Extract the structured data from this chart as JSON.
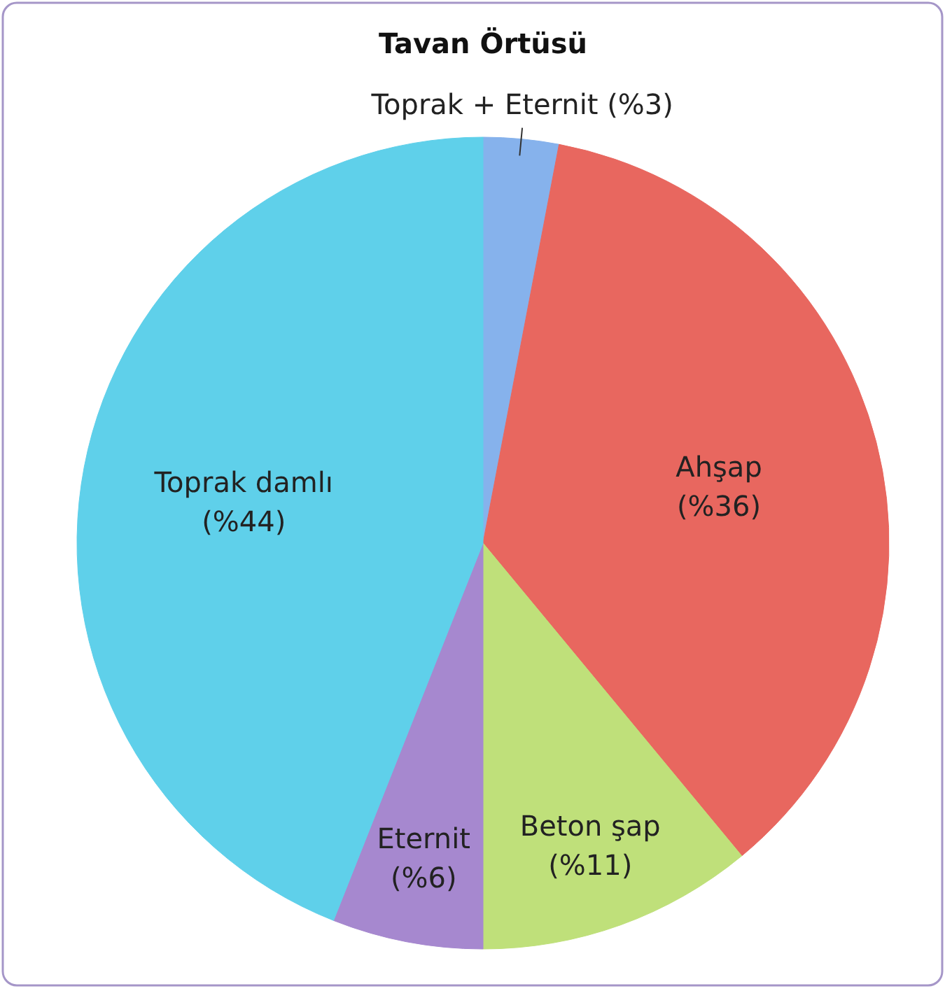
{
  "chart_data": {
    "type": "pie",
    "title": "Tavan Örtüsü",
    "categories": [
      "Toprak + Eternit",
      "Ahşap",
      "Beton şap",
      "Eternit",
      "Toprak damlı"
    ],
    "values": [
      3,
      36,
      11,
      6,
      44
    ],
    "colors": [
      "#86b2ec",
      "#e8675f",
      "#bfe07a",
      "#a688cf",
      "#5fd0ea"
    ],
    "value_labels": [
      "(%3)",
      "(%36)",
      "(%11)",
      "(%6)",
      "(%44)"
    ]
  }
}
